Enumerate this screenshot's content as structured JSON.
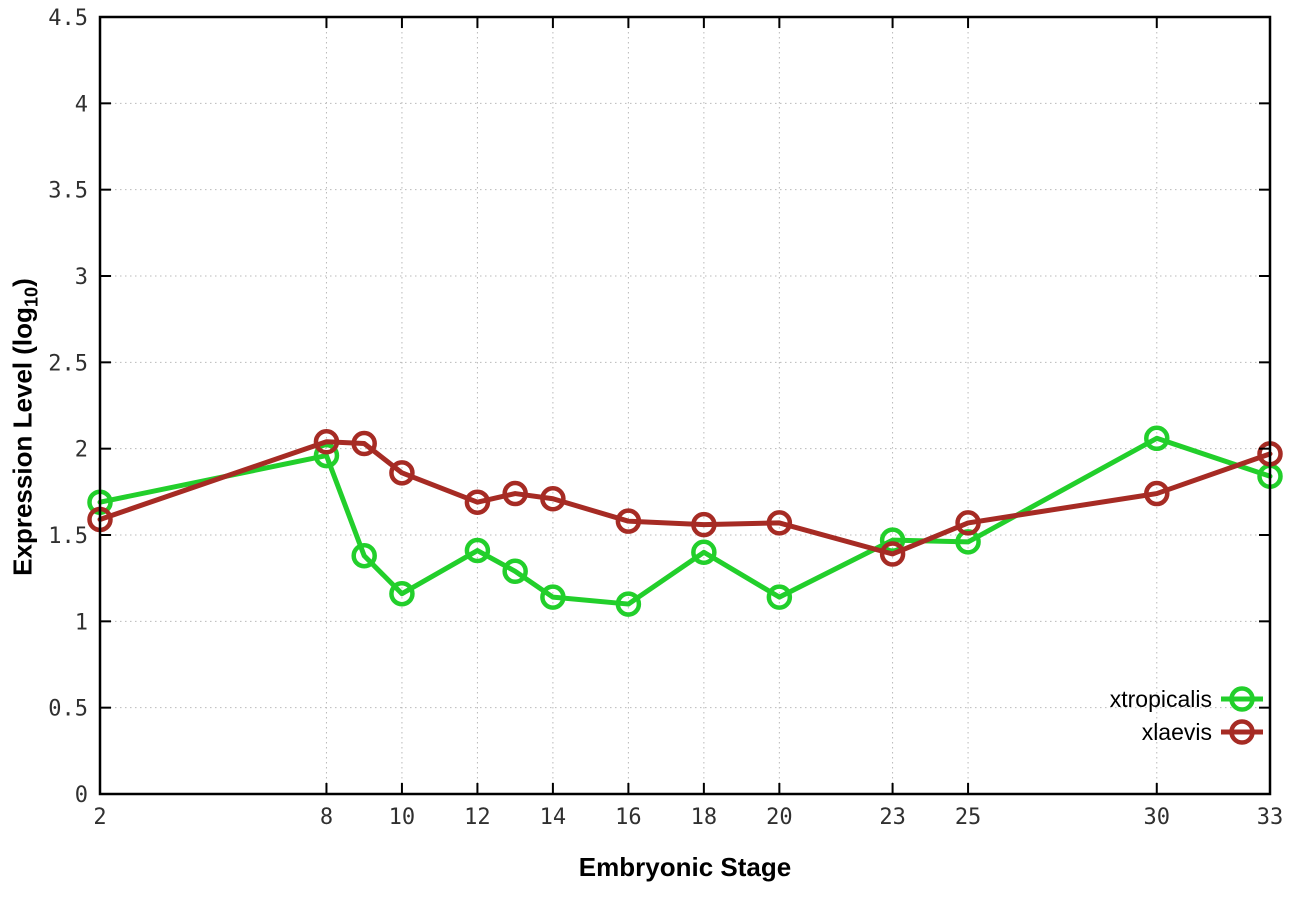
{
  "chart_data": {
    "type": "line",
    "title": "",
    "xlabel": "Embryonic Stage",
    "ylabel_parts": {
      "pre": "Expression Level (log",
      "sub": "10",
      "post": ")"
    },
    "xlim": [
      2,
      33
    ],
    "ylim": [
      0,
      4.5
    ],
    "grid": true,
    "legend_position": "inside-bottom-right",
    "marker": "open-circle",
    "xticks": [
      2,
      8,
      10,
      12,
      14,
      16,
      18,
      20,
      23,
      25,
      30,
      33
    ],
    "xtick_labels": [
      "2",
      "8",
      "10",
      "12",
      "14",
      "16",
      "18",
      "20",
      "23",
      "25",
      "30",
      "33"
    ],
    "yticks": [
      0,
      0.5,
      1,
      1.5,
      2,
      2.5,
      3,
      3.5,
      4,
      4.5
    ],
    "ytick_labels": [
      "0",
      "0.5",
      "1",
      "1.5",
      "2",
      "2.5",
      "3",
      "3.5",
      "4",
      "4.5"
    ],
    "x": [
      2,
      8,
      9,
      10,
      12,
      13,
      14,
      16,
      18,
      20,
      23,
      25,
      30,
      33
    ],
    "series": [
      {
        "name": "xtropicalis",
        "color": "#22cf2b",
        "values": [
          1.69,
          1.96,
          1.38,
          1.16,
          1.41,
          1.29,
          1.14,
          1.1,
          1.4,
          1.14,
          1.47,
          1.46,
          2.06,
          1.84
        ]
      },
      {
        "name": "xlaevis",
        "color": "#a62b24",
        "values": [
          1.59,
          2.04,
          2.03,
          1.86,
          1.69,
          1.74,
          1.71,
          1.58,
          1.56,
          1.57,
          1.39,
          1.57,
          1.74,
          1.97
        ]
      }
    ]
  }
}
